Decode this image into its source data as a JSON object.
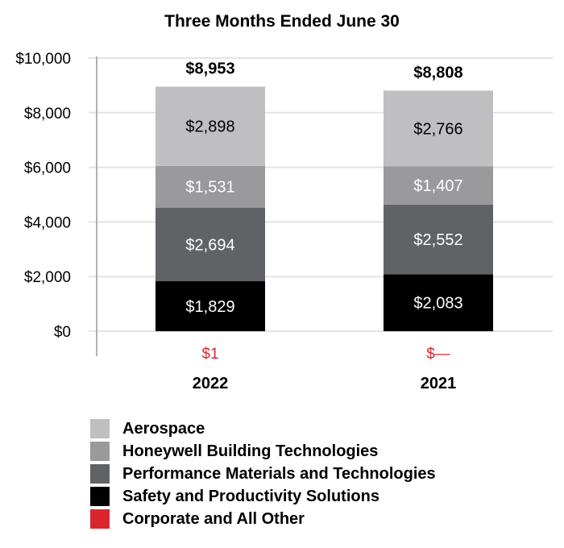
{
  "chart_data": {
    "type": "bar",
    "stacked": true,
    "title": "Three Months Ended June 30",
    "categories": [
      "2022",
      "2021"
    ],
    "totals": [
      "$8,953",
      "$8,808"
    ],
    "ylim": [
      0,
      10000
    ],
    "yticks": [
      0,
      2000,
      4000,
      6000,
      8000,
      10000
    ],
    "ytick_labels": [
      "$0",
      "$2,000",
      "$4,000",
      "$6,000",
      "$8,000",
      "$10,000"
    ],
    "grid": true,
    "series": [
      {
        "name": "Safety and Productivity Solutions",
        "values": [
          1829,
          2083
        ],
        "labels": [
          "$1,829",
          "$2,083"
        ],
        "color": "#000000",
        "label_color": "#ffffff"
      },
      {
        "name": "Performance Materials and Technologies",
        "values": [
          2694,
          2552
        ],
        "labels": [
          "$2,694",
          "$2,552"
        ],
        "color": "#606266",
        "label_color": "#ffffff"
      },
      {
        "name": "Honeywell Building Technologies",
        "values": [
          1531,
          1407
        ],
        "labels": [
          "$1,531",
          "$1,407"
        ],
        "color": "#9a9a9c",
        "label_color": "#ffffff"
      },
      {
        "name": "Aerospace",
        "values": [
          2898,
          2766
        ],
        "labels": [
          "$2,898",
          "$2,766"
        ],
        "color": "#bfbfc1",
        "label_color": "#000000"
      }
    ],
    "corporate": {
      "name": "Corporate and All Other",
      "values": [
        1,
        0
      ],
      "labels": [
        "$1",
        "$—"
      ],
      "color": "#d9262e"
    },
    "legend": {
      "placement": "bottom",
      "items": [
        {
          "name": "Aerospace",
          "color": "#bfbfc1"
        },
        {
          "name": "Honeywell Building Technologies",
          "color": "#9a9a9c"
        },
        {
          "name": "Performance Materials and Technologies",
          "color": "#606266"
        },
        {
          "name": "Safety and Productivity Solutions",
          "color": "#000000"
        },
        {
          "name": "Corporate and All Other",
          "color": "#d9262e"
        }
      ]
    }
  }
}
